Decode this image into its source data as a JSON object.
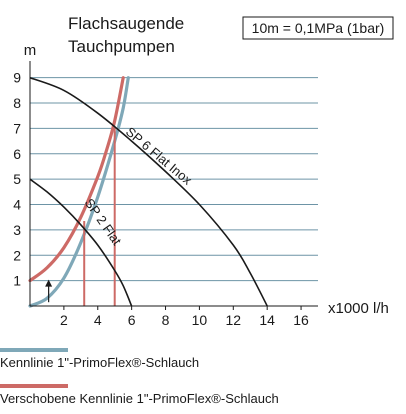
{
  "chart_data": {
    "type": "line",
    "title_lines": [
      "Flachsaugende",
      "Tauchpumpen"
    ],
    "note": "10m = 0,1MPa (1bar)",
    "ylabel": "m",
    "xlabel": "x1000 l/h",
    "xlim": [
      0,
      17
    ],
    "ylim": [
      0,
      9.5
    ],
    "x_ticks": [
      2,
      4,
      6,
      8,
      10,
      12,
      14,
      16
    ],
    "y_ticks": [
      1,
      2,
      3,
      4,
      5,
      6,
      7,
      8,
      9
    ],
    "grid": "horizontal",
    "series": [
      {
        "name": "SP 6 Flat Inox",
        "kind": "pump",
        "color": "#1a1a1a",
        "x": [
          0,
          2,
          4,
          6,
          8,
          10,
          12,
          13,
          14
        ],
        "y": [
          9,
          8.5,
          7.6,
          6.5,
          5.3,
          4.0,
          2.4,
          1.3,
          0
        ]
      },
      {
        "name": "SP 2 Flat",
        "kind": "pump",
        "color": "#1a1a1a",
        "x": [
          0,
          1,
          2,
          3,
          4,
          5,
          5.5,
          6
        ],
        "y": [
          5,
          4.5,
          3.9,
          3.2,
          2.4,
          1.4,
          0.8,
          0
        ]
      }
    ],
    "hose_curves": [
      {
        "color": "#7fa8b8",
        "x": [
          0,
          1,
          2,
          3,
          4,
          5,
          5.5,
          5.8
        ],
        "y": [
          0,
          0.3,
          1.1,
          2.5,
          4.3,
          6.5,
          7.8,
          9
        ]
      },
      {
        "color": "#cd6a66",
        "x": [
          0,
          1,
          2,
          3,
          4,
          4.5,
          5,
          5.5
        ],
        "y": [
          1,
          1.5,
          2.3,
          3.5,
          5.1,
          6.1,
          7.3,
          9
        ]
      }
    ],
    "intersections": [
      {
        "x": 3.2,
        "y": 3.35,
        "color": "#cd6a66"
      },
      {
        "x": 5.0,
        "y": 7.0,
        "color": "#cd6a66"
      }
    ],
    "shift_arrow": {
      "x": 1.1,
      "from_y": 0.15,
      "to_y": 1.0
    }
  },
  "legend": [
    {
      "label": "Kennlinie 1\"-PrimoFlex®-Schlauch",
      "color": "#7fa8b8"
    },
    {
      "label": "Verschobene Kennlinie 1\"-PrimoFlex®-Schlauch",
      "color": "#cd6a66"
    }
  ]
}
